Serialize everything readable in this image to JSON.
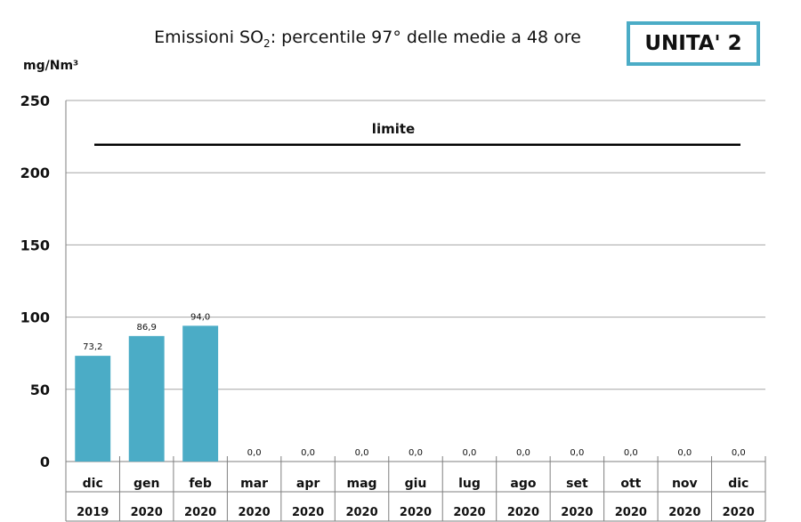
{
  "header": {
    "title_prefix": "Emissioni SO",
    "title_sub": "2",
    "title_suffix": ": percentile 97° delle medie a 48 ore",
    "unit_box": "UNITA' 2"
  },
  "chart_data": {
    "type": "bar",
    "ylabel": "mg/Nm³",
    "ylim": [
      0,
      250
    ],
    "yticks": [
      0,
      50,
      100,
      150,
      200,
      250
    ],
    "grid": true,
    "categories": [
      "dic",
      "gen",
      "feb",
      "mar",
      "apr",
      "mag",
      "giu",
      "lug",
      "ago",
      "set",
      "ott",
      "nov",
      "dic"
    ],
    "years": [
      "2019",
      "2020",
      "2020",
      "2020",
      "2020",
      "2020",
      "2020",
      "2020",
      "2020",
      "2020",
      "2020",
      "2020",
      "2020"
    ],
    "values": [
      73.2,
      86.9,
      94.0,
      0,
      0,
      0,
      0,
      0,
      0,
      0,
      0,
      0,
      0
    ],
    "value_labels": [
      "73,2",
      "86,9",
      "94,0",
      "0,0",
      "0,0",
      "0,0",
      "0,0",
      "0,0",
      "0,0",
      "0,0",
      "0,0",
      "0,0",
      "0,0"
    ],
    "bar_color": "#4bacc6",
    "limit": {
      "label": "limite",
      "value": 220
    }
  }
}
